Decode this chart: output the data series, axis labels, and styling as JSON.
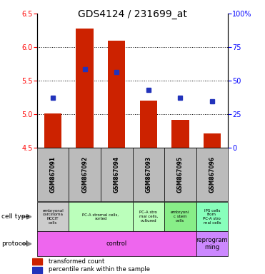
{
  "title": "GDS4124 / 231699_at",
  "samples": [
    "GSM867091",
    "GSM867092",
    "GSM867094",
    "GSM867093",
    "GSM867095",
    "GSM867096"
  ],
  "bar_values": [
    5.01,
    6.28,
    6.1,
    5.21,
    4.92,
    4.72
  ],
  "bar_bottom": 4.5,
  "percentile_values": [
    5.25,
    5.67,
    5.63,
    5.36,
    5.25,
    5.2
  ],
  "ylim_left": [
    4.5,
    6.5
  ],
  "ylim_right": [
    0,
    100
  ],
  "yticks_left": [
    4.5,
    5.0,
    5.5,
    6.0,
    6.5
  ],
  "yticks_right": [
    0,
    25,
    50,
    75,
    100
  ],
  "ytick_labels_right": [
    "0",
    "25",
    "50",
    "75",
    "100%"
  ],
  "bar_color": "#cc2200",
  "dot_color": "#2233bb",
  "cell_types": [
    {
      "label": "embryonal\ncarcinoma\nNCCIT\ncells",
      "span": [
        0,
        1
      ],
      "color": "#cccccc"
    },
    {
      "label": "PC-A stromal cells,\nsorted",
      "span": [
        1,
        3
      ],
      "color": "#bbffbb"
    },
    {
      "label": "PC-A stro\nmal cells,\ncultured",
      "span": [
        3,
        4
      ],
      "color": "#bbffbb"
    },
    {
      "label": "embryoni\nc stem\ncells",
      "span": [
        4,
        5
      ],
      "color": "#88ee88"
    },
    {
      "label": "IPS cells\nfrom\nPC-A stro\nmal cells",
      "span": [
        5,
        6
      ],
      "color": "#88ffbb"
    }
  ],
  "protocols": [
    {
      "label": "control",
      "span": [
        0,
        5
      ],
      "color": "#ee66ee"
    },
    {
      "label": "reprogram\nming",
      "span": [
        5,
        6
      ],
      "color": "#cc88ff"
    }
  ],
  "sample_box_color": "#bbbbbb",
  "bar_width": 0.55,
  "fig_width": 3.71,
  "fig_height": 3.84
}
